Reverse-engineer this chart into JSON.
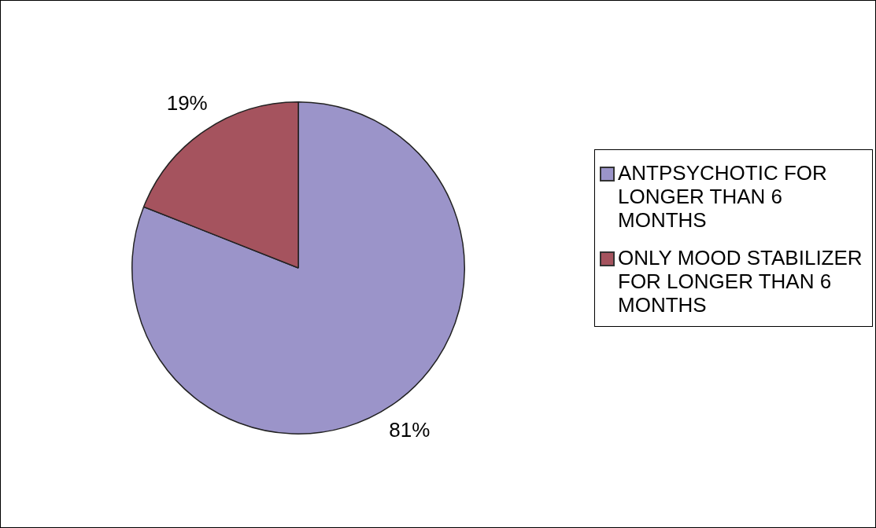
{
  "chart_data": {
    "type": "pie",
    "categories": [
      "ANTPSYCHOTIC FOR LONGER THAN 6 MONTHS",
      "ONLY MOOD STABILIZER FOR LONGER THAN 6 MONTHS"
    ],
    "values": [
      81,
      19
    ],
    "value_labels": [
      "81%",
      "19%"
    ],
    "colors": [
      "#9b94c9",
      "#a5535e"
    ],
    "legend": "right"
  }
}
